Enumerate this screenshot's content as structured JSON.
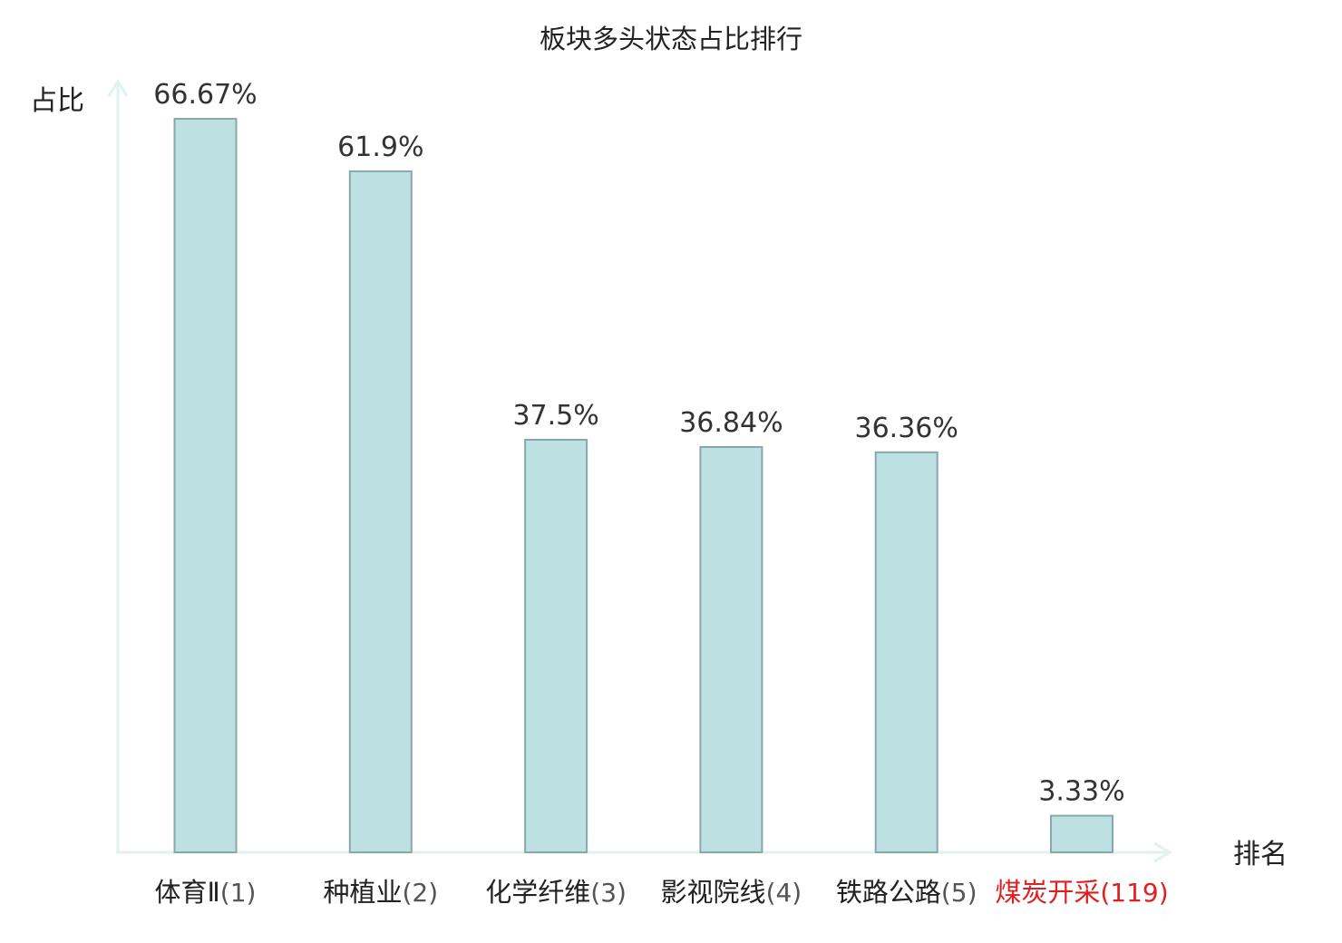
{
  "chart_data": {
    "type": "bar",
    "title": "板块多头状态占比排行",
    "ylabel": "占比",
    "xlabel": "排名",
    "ylim": [
      0,
      70
    ],
    "grid": false,
    "legend": "none",
    "categories": [
      {
        "name": "体育Ⅱ",
        "rank": "(1)",
        "highlight": false
      },
      {
        "name": "种植业",
        "rank": "(2)",
        "highlight": false
      },
      {
        "name": "化学纤维",
        "rank": "(3)",
        "highlight": false
      },
      {
        "name": "影视院线",
        "rank": "(4)",
        "highlight": false
      },
      {
        "name": "铁路公路",
        "rank": "(5)",
        "highlight": false
      },
      {
        "name": "煤炭开采",
        "rank": "(119)",
        "highlight": true
      }
    ],
    "values": [
      66.67,
      61.9,
      37.5,
      36.84,
      36.36,
      3.33
    ],
    "value_labels": [
      "66.67%",
      "61.9%",
      "37.5%",
      "36.84%",
      "36.36%",
      "3.33%"
    ],
    "colors": {
      "bar_fill": "#bde0e3",
      "bar_stroke": "#8aa7aa",
      "axis": "#e0f2ef",
      "highlight_text": "#e02020",
      "text": "#222222"
    }
  }
}
